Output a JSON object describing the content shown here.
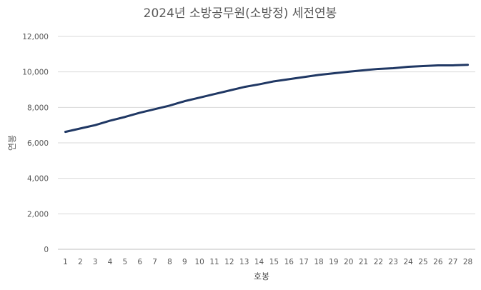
{
  "chart_data": {
    "type": "line",
    "title": "2024년 소방공무원(소방정) 세전연봉",
    "xlabel": "호봉",
    "ylabel": "연봉",
    "x": [
      1,
      2,
      3,
      4,
      5,
      6,
      7,
      8,
      9,
      10,
      11,
      12,
      13,
      14,
      15,
      16,
      17,
      18,
      19,
      20,
      21,
      22,
      23,
      24,
      25,
      26,
      27,
      28
    ],
    "series": [
      {
        "name": "",
        "color": "#203864",
        "values": [
          6620,
          6810,
          7000,
          7250,
          7460,
          7700,
          7900,
          8100,
          8350,
          8550,
          8750,
          8950,
          9150,
          9300,
          9470,
          9590,
          9710,
          9830,
          9920,
          10010,
          10090,
          10170,
          10210,
          10290,
          10330,
          10370,
          10370,
          10400
        ]
      }
    ],
    "ylim": [
      0,
      12000
    ],
    "yticks": [
      0,
      2000,
      4000,
      6000,
      8000,
      10000,
      12000
    ],
    "ytick_labels": [
      "0",
      "2,000",
      "4,000",
      "6,000",
      "8,000",
      "10,000",
      "12,000"
    ],
    "grid": true,
    "legend": "none"
  }
}
